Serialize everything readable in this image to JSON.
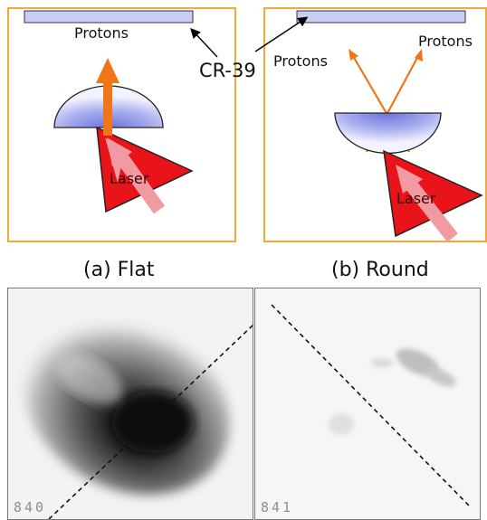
{
  "panel_a": {
    "protons_label": "Protons",
    "laser_label": "Laser",
    "caption": "(a) Flat"
  },
  "panel_b": {
    "protons_label_left": "Protons",
    "protons_label_right": "Protons",
    "laser_label": "Laser",
    "caption": "(b) Round"
  },
  "shared": {
    "detector_label": "CR-39"
  },
  "plates": {
    "left_number": "840",
    "right_number": "841"
  },
  "colors": {
    "frame": "#f2a93b",
    "detector_fill": "#c9cdf4",
    "target_fill": "#7d86e0",
    "laser_red": "#e8141a",
    "laser_arrow": "#f29aa2",
    "proton_arrow": "#f07418"
  }
}
